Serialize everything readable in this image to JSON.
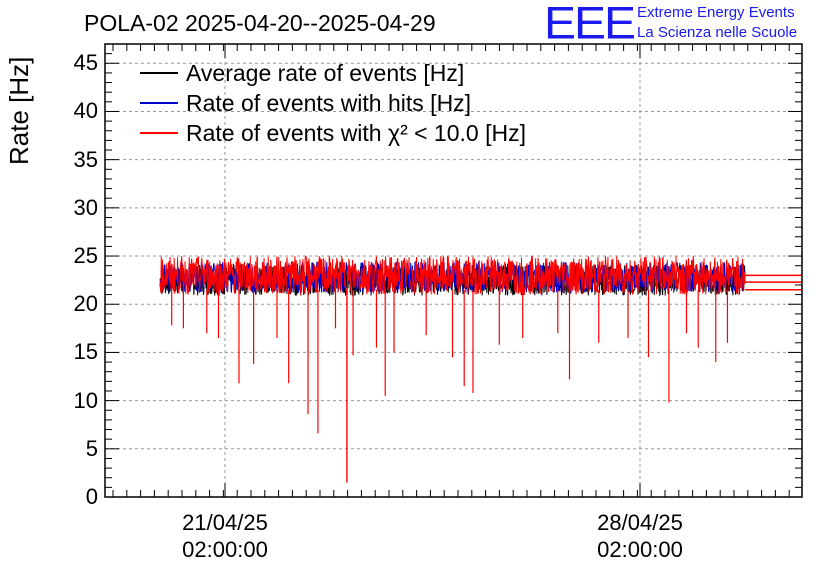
{
  "title": "POLA-02 2025-04-20--2025-04-29",
  "logo": {
    "text": "EEE",
    "line1": "Extreme Energy Events",
    "line2": "La Scienza nelle Scuole",
    "color": "#1a1aee"
  },
  "chart_data": {
    "type": "line",
    "ylabel": "Rate [Hz]",
    "ylim": [
      0,
      47
    ],
    "yticks": [
      "0",
      "5",
      "10",
      "15",
      "20",
      "25",
      "30",
      "35",
      "40",
      "45"
    ],
    "xticks": [
      {
        "date": "21/04/25",
        "time": "02:00:00"
      },
      {
        "date": "28/04/25",
        "time": "02:00:00"
      }
    ],
    "grid": true,
    "legend_position": "top-left",
    "series": [
      {
        "name": "Average rate of events [Hz]",
        "color": "#000000",
        "level": 22.5
      },
      {
        "name": "Rate of events with hits [Hz]",
        "color": "#0000cc",
        "level": 22.8
      },
      {
        "name": "Rate of events with χ² < 10.0 [Hz]",
        "color": "#ff0000",
        "level": 23.0,
        "dips": [
          {
            "x": 0.02,
            "y": 17.8
          },
          {
            "x": 0.04,
            "y": 17.5
          },
          {
            "x": 0.08,
            "y": 17.0
          },
          {
            "x": 0.1,
            "y": 16.5
          },
          {
            "x": 0.135,
            "y": 11.8
          },
          {
            "x": 0.16,
            "y": 13.8
          },
          {
            "x": 0.2,
            "y": 16.5
          },
          {
            "x": 0.22,
            "y": 11.8
          },
          {
            "x": 0.253,
            "y": 8.6
          },
          {
            "x": 0.27,
            "y": 6.6
          },
          {
            "x": 0.3,
            "y": 17.5
          },
          {
            "x": 0.33,
            "y": 14.7
          },
          {
            "x": 0.37,
            "y": 15.5
          },
          {
            "x": 0.385,
            "y": 10.5
          },
          {
            "x": 0.4,
            "y": 15.0
          },
          {
            "x": 0.455,
            "y": 16.8
          },
          {
            "x": 0.5,
            "y": 14.5
          },
          {
            "x": 0.52,
            "y": 11.5
          },
          {
            "x": 0.535,
            "y": 10.8
          },
          {
            "x": 0.58,
            "y": 15.8
          },
          {
            "x": 0.62,
            "y": 16.5
          },
          {
            "x": 0.68,
            "y": 17.0
          },
          {
            "x": 0.7,
            "y": 12.2
          },
          {
            "x": 0.75,
            "y": 16.0
          },
          {
            "x": 0.8,
            "y": 16.5
          },
          {
            "x": 0.835,
            "y": 14.5
          },
          {
            "x": 0.87,
            "y": 9.8
          },
          {
            "x": 0.9,
            "y": 17.0
          },
          {
            "x": 0.92,
            "y": 15.5
          },
          {
            "x": 0.95,
            "y": 14.0
          },
          {
            "x": 0.97,
            "y": 16.0
          }
        ],
        "deep_dip": {
          "x": 0.27,
          "y": 1.5
        }
      }
    ]
  }
}
